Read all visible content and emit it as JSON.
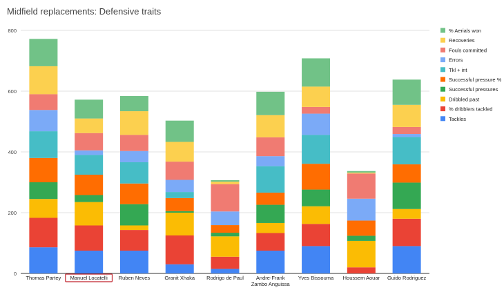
{
  "chart_data": {
    "type": "bar",
    "stacked": true,
    "title": "Midfield replacements: Defensive traits",
    "xlabel": "",
    "ylabel": "",
    "ylim": [
      0,
      800
    ],
    "yticks": [
      0,
      200,
      400,
      600,
      800
    ],
    "grid": true,
    "legend_position": "right",
    "highlighted_category": "Manuel Locatelli",
    "categories": [
      "Thomas Partey",
      "Manuel Locatelli",
      "Ruben Neves",
      "Granit Xhaka",
      "Rodrigo de Paul",
      "Andre-Frank Zambo Anguissa",
      "Yves Bissouma",
      "Houssem Aouar",
      "Guido Rodriguez"
    ],
    "category_lines": [
      [
        "Thomas Partey"
      ],
      [
        "Manuel Locatelli"
      ],
      [
        "Ruben Neves"
      ],
      [
        "Granit Xhaka"
      ],
      [
        "Rodrigo de Paul"
      ],
      [
        "Andre-Frank",
        "Zambo Anguissa"
      ],
      [
        "Yves Bissouma"
      ],
      [
        "Houssem Aouar"
      ],
      [
        "Guido Rodriguez"
      ]
    ],
    "series": [
      {
        "name": "Tackles",
        "color": "#4285f4",
        "values": [
          86,
          75,
          75,
          30,
          15,
          75,
          90,
          0,
          90
        ]
      },
      {
        "name": "% dribblers tackled",
        "color": "#ea4335",
        "values": [
          97,
          83,
          68,
          95,
          40,
          58,
          73,
          20,
          90
        ]
      },
      {
        "name": "Dribbled past",
        "color": "#fbbc04",
        "values": [
          62,
          77,
          15,
          75,
          67,
          33,
          58,
          87,
          32
        ]
      },
      {
        "name": "Successful pressures",
        "color": "#34a853",
        "values": [
          55,
          23,
          70,
          5,
          12,
          60,
          55,
          17,
          87
        ]
      },
      {
        "name": "Successful pressure %",
        "color": "#ff6d01",
        "values": [
          80,
          67,
          68,
          43,
          25,
          40,
          85,
          50,
          60
        ]
      },
      {
        "name": "Tkl + int",
        "color": "#46bdc6",
        "values": [
          88,
          65,
          70,
          20,
          0,
          87,
          95,
          0,
          90
        ]
      },
      {
        "name": "Errors",
        "color": "#7baaf7",
        "values": [
          70,
          15,
          37,
          40,
          45,
          33,
          70,
          72,
          10
        ]
      },
      {
        "name": "Fouls committed",
        "color": "#f07b72",
        "values": [
          52,
          57,
          53,
          60,
          90,
          62,
          22,
          83,
          23
        ]
      },
      {
        "name": "Recoveries",
        "color": "#fcd04f",
        "values": [
          92,
          48,
          78,
          65,
          8,
          73,
          67,
          3,
          73
        ]
      },
      {
        "name": "% Aerials won",
        "color": "#71c287",
        "values": [
          90,
          62,
          50,
          70,
          5,
          77,
          93,
          5,
          83
        ]
      }
    ]
  }
}
